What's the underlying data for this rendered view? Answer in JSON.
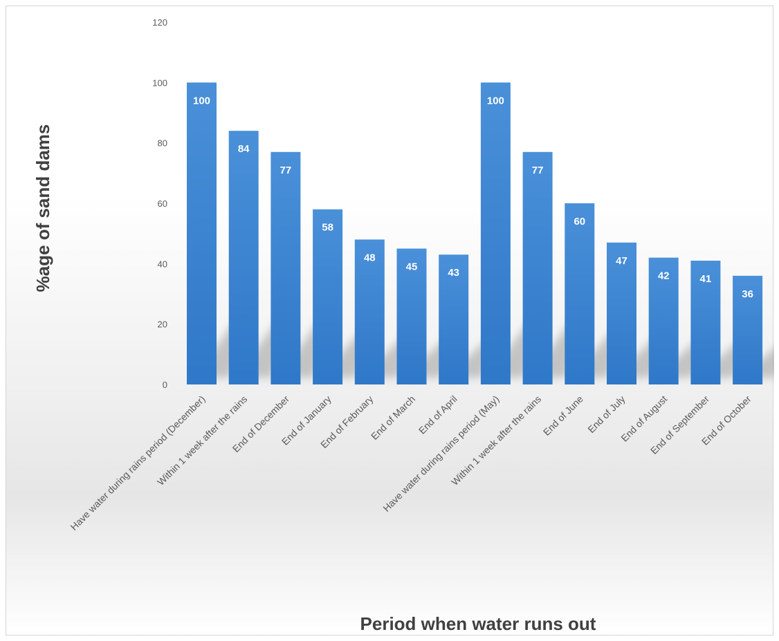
{
  "chart_data": {
    "type": "bar",
    "title": "",
    "xlabel": "Period when water runs out",
    "ylabel": "%age of sand dams",
    "ylim": [
      0,
      120
    ],
    "yticks": [
      0,
      20,
      40,
      60,
      80,
      100,
      120
    ],
    "grid": false,
    "legend": "none",
    "bar_color": "#3f86d1",
    "categories": [
      "Have water during rains period (December)",
      "Within 1 week after the rains",
      "End of December",
      "End of January",
      "End of February",
      "End of March",
      "End of April",
      "Have water during rains period (May)",
      "Within 1 week after the rains",
      "End of June",
      "End of July",
      "End of August",
      "End of September",
      "End of October"
    ],
    "values": [
      100,
      84,
      77,
      58,
      48,
      45,
      43,
      100,
      77,
      60,
      47,
      42,
      41,
      36
    ]
  }
}
